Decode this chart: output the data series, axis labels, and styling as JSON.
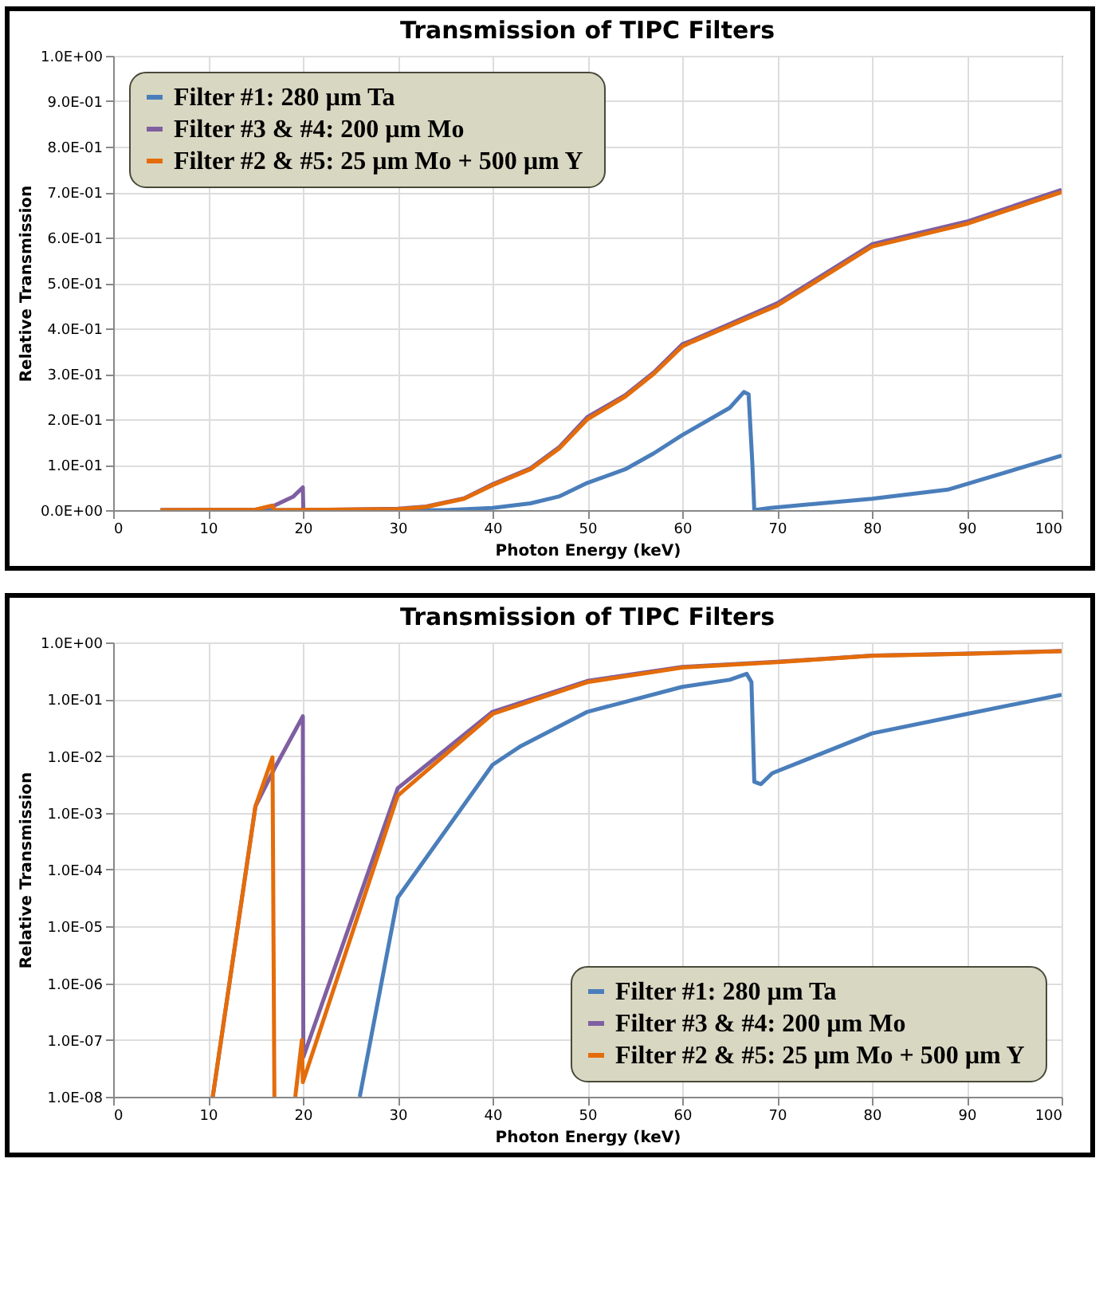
{
  "chart_data": [
    {
      "type": "line",
      "title": "Transmission of TIPC Filters",
      "xlabel": "Photon Energy (keV)",
      "ylabel": "Relative Transmission",
      "xlim": [
        0,
        100
      ],
      "xticks": [
        0,
        10,
        20,
        30,
        40,
        50,
        60,
        70,
        80,
        90,
        100
      ],
      "ylim": [
        0,
        1
      ],
      "yticks": [
        {
          "value": 0,
          "label": "0.0E+00"
        },
        {
          "value": 0.1,
          "label": "1.0E-01"
        },
        {
          "value": 0.2,
          "label": "2.0E-01"
        },
        {
          "value": 0.3,
          "label": "3.0E-01"
        },
        {
          "value": 0.4,
          "label": "4.0E-01"
        },
        {
          "value": 0.5,
          "label": "5.0E-01"
        },
        {
          "value": 0.6,
          "label": "6.0E-01"
        },
        {
          "value": 0.7,
          "label": "7.0E-01"
        },
        {
          "value": 0.8,
          "label": "8.0E-01"
        },
        {
          "value": 0.9,
          "label": "9.0E-01"
        },
        {
          "value": 1,
          "label": "1.0E+00"
        }
      ],
      "grid": true,
      "legend": "top left",
      "series": [
        {
          "name": "Filter #1:  280 µm Ta",
          "color": "#4a7ebb",
          "x": [
            5,
            30,
            35,
            40,
            44,
            47,
            50,
            54,
            57,
            60,
            65,
            66.5,
            67,
            67.4,
            67.6,
            69.3,
            80,
            88,
            100
          ],
          "values": [
            0,
            0,
            0,
            0.005,
            0.015,
            0.03,
            0.06,
            0.09,
            0.125,
            0.165,
            0.225,
            0.26,
            0.255,
            0.1,
            0,
            0.005,
            0.025,
            0.045,
            0.12
          ]
        },
        {
          "name": "Filter #3 & #4:  200 µm Mo",
          "color": "#7f5fa0",
          "x": [
            5,
            15,
            17,
            19,
            20,
            20.05,
            30,
            33,
            37,
            40,
            44,
            47,
            50,
            54,
            57,
            60,
            61,
            70,
            80,
            90,
            100
          ],
          "values": [
            0,
            0.001,
            0.01,
            0.03,
            0.05,
            0,
            0.003,
            0.008,
            0.026,
            0.057,
            0.092,
            0.138,
            0.205,
            0.253,
            0.303,
            0.365,
            0.373,
            0.455,
            0.585,
            0.635,
            0.705
          ]
        },
        {
          "name": "Filter #2 & #5:  25 µm Mo + 500 µm Y",
          "color": "#e46c0a",
          "x": [
            5,
            15,
            16.8,
            17,
            30,
            33,
            37,
            40,
            44,
            47,
            50,
            54,
            57,
            60,
            61,
            70,
            80,
            90,
            100
          ],
          "values": [
            0,
            0.001,
            0.01,
            0,
            0.002,
            0.007,
            0.025,
            0.055,
            0.09,
            0.135,
            0.2,
            0.25,
            0.3,
            0.36,
            0.37,
            0.45,
            0.58,
            0.63,
            0.7
          ]
        }
      ]
    },
    {
      "type": "line",
      "title": "Transmission of TIPC Filters",
      "xlabel": "Photon Energy (keV)",
      "ylabel": "Relative Transmission",
      "log": "y",
      "xlim": [
        0,
        100
      ],
      "xticks": [
        0,
        10,
        20,
        30,
        40,
        50,
        60,
        70,
        80,
        90,
        100
      ],
      "ylim": [
        1e-08,
        1
      ],
      "yticks": [
        {
          "value": 1e-08,
          "label": "1.0E-08"
        },
        {
          "value": 1e-07,
          "label": "1.0E-07"
        },
        {
          "value": 1e-06,
          "label": "1.0E-06"
        },
        {
          "value": 1e-05,
          "label": "1.0E-05"
        },
        {
          "value": 0.0001,
          "label": "1.0E-04"
        },
        {
          "value": 0.001,
          "label": "1.0E-03"
        },
        {
          "value": 0.01,
          "label": "1.0E-02"
        },
        {
          "value": 0.1,
          "label": "1.0E-01"
        },
        {
          "value": 1,
          "label": "1.0E+00"
        }
      ],
      "grid": true,
      "legend": "bottom right",
      "series": [
        {
          "name": "Filter #1:  280 µm Ta",
          "color": "#4a7ebb",
          "x": [
            26,
            30,
            40,
            43,
            50,
            60,
            65,
            66.8,
            67.3,
            67.6,
            68.3,
            69.5,
            80,
            90,
            100
          ],
          "values": [
            1e-08,
            3.2e-05,
            0.007,
            0.015,
            0.06,
            0.165,
            0.22,
            0.28,
            0.2,
            0.0035,
            0.0032,
            0.005,
            0.025,
            0.055,
            0.12
          ]
        },
        {
          "name": "Filter #3 & #4:  200 µm Mo",
          "color": "#7f5fa0",
          "x": [
            10.5,
            15,
            17,
            20,
            20.05,
            30,
            40,
            50,
            60,
            70,
            80,
            90,
            100
          ],
          "values": [
            1e-08,
            0.0013,
            0.006,
            0.05,
            5e-08,
            0.0027,
            0.06,
            0.21,
            0.37,
            0.455,
            0.585,
            0.635,
            0.705
          ]
        },
        {
          "name": "Filter #2 & #5:  25 µm Mo + 500 µm Y",
          "color": "#e46c0a",
          "x": [
            10.5,
            15,
            16.8,
            17,
            18,
            19.2,
            19.9,
            20,
            30,
            40,
            50,
            60,
            70,
            80,
            90,
            100
          ],
          "values": [
            1e-08,
            0.0013,
            0.0095,
            1e-08,
            null,
            1e-08,
            1e-07,
            1.8e-08,
            0.002,
            0.055,
            0.2,
            0.36,
            0.45,
            0.58,
            0.63,
            0.7
          ]
        }
      ]
    }
  ]
}
